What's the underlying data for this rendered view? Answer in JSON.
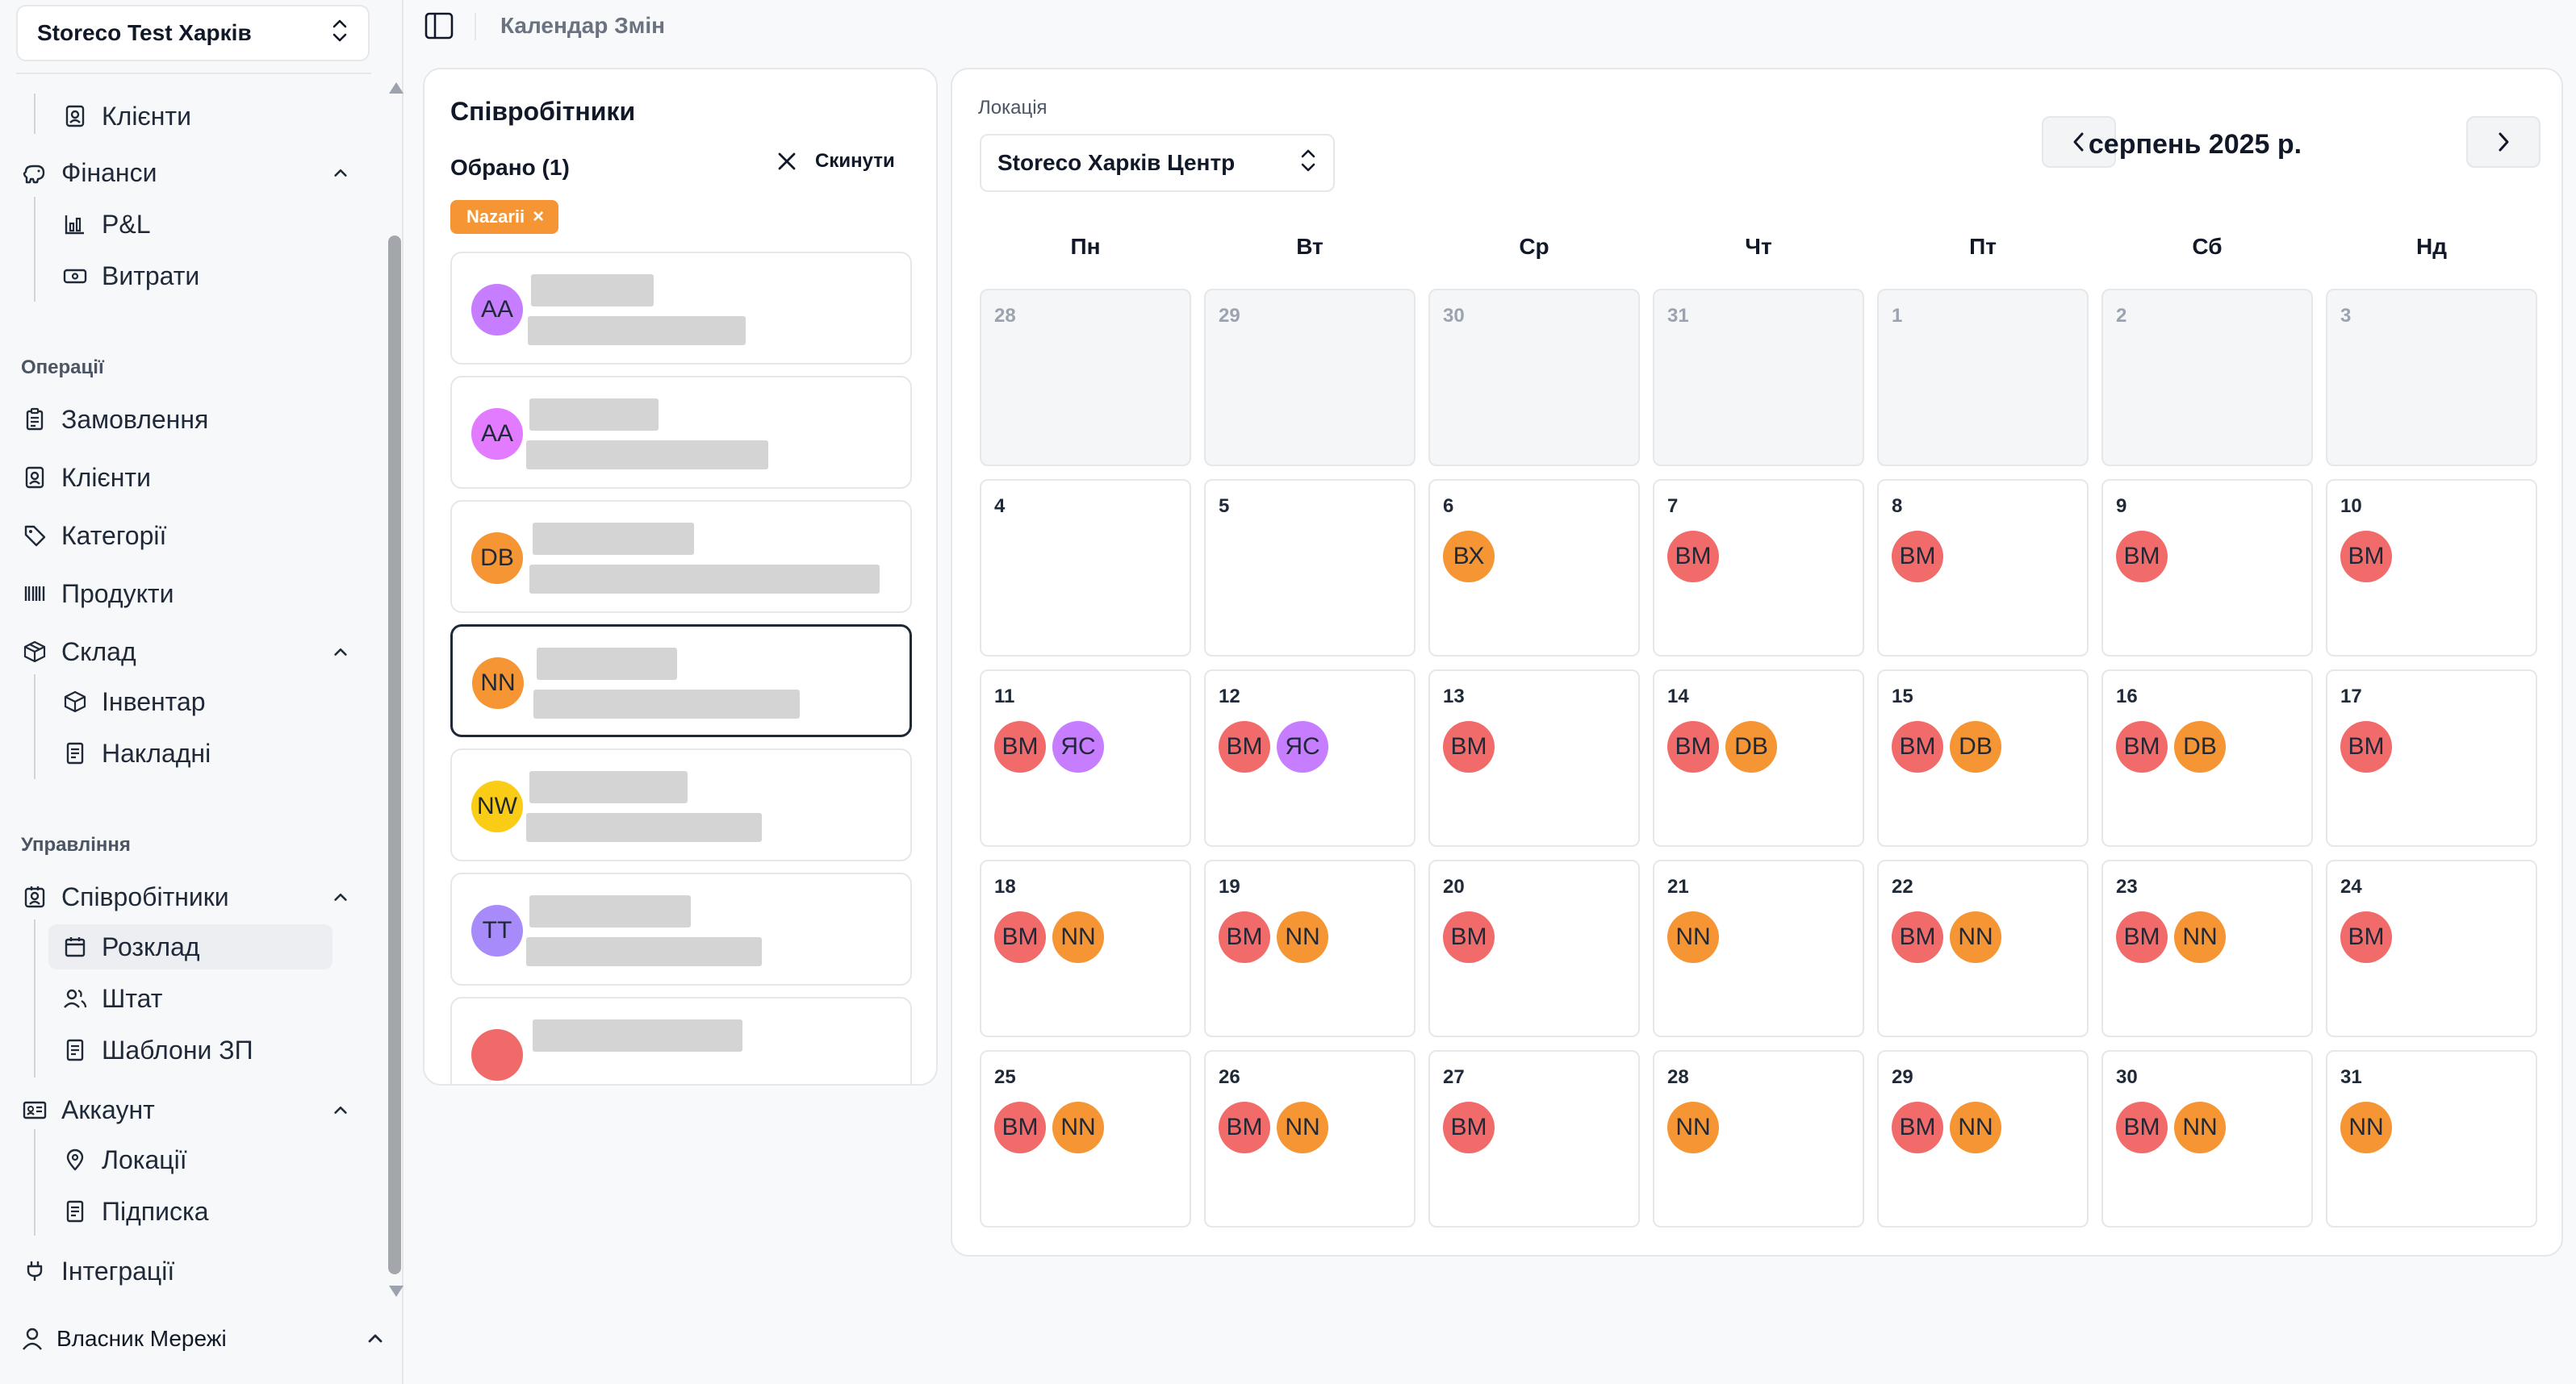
{
  "sidebar": {
    "store_name": "Storeco Test Харків",
    "items": {
      "clients_top": "Клієнти",
      "finance": "Фінанси",
      "pl": "P&L",
      "expenses": "Витрати",
      "section_operations": "Операції",
      "orders": "Замовлення",
      "clients": "Клієнти",
      "categories": "Категорії",
      "products": "Продукти",
      "warehouse": "Склад",
      "inventory": "Інвентар",
      "invoices": "Накладні",
      "section_management": "Управління",
      "employees": "Співробітники",
      "schedule": "Розклад",
      "staff": "Штат",
      "salary_templates": "Шаблони ЗП",
      "account": "Аккаунт",
      "locations": "Локації",
      "subscription": "Підписка",
      "integrations": "Інтеграції"
    },
    "owner": "Власник Мережі"
  },
  "header": {
    "title": "Календар Змін"
  },
  "employees_panel": {
    "title": "Співробітники",
    "chosen": "Обрано (1)",
    "reset": "Скинути",
    "tag": "Nazarii",
    "cards": [
      {
        "initials": "AA",
        "color": "#c77dff"
      },
      {
        "initials": "AA",
        "color": "#e27bff"
      },
      {
        "initials": "DB",
        "color": "#f59534"
      },
      {
        "initials": "NN",
        "color": "#f59534",
        "selected": true
      },
      {
        "initials": "NW",
        "color": "#facc15"
      },
      {
        "initials": "TT",
        "color": "#a78bfa"
      },
      {
        "initials": "",
        "color": "#f06a6a"
      }
    ]
  },
  "calendar": {
    "location_label": "Локація",
    "location_value": "Storeco Харків Центр",
    "month": "серпень 2025 р.",
    "weekdays": [
      "Пн",
      "Вт",
      "Ср",
      "Чт",
      "Пт",
      "Сб",
      "Нд"
    ],
    "colors": {
      "ВМ": "#f26b6b",
      "ЯС": "#c77dff",
      "ВХ": "#f59534",
      "DB": "#f59534",
      "NN": "#f59534"
    },
    "days": [
      {
        "d": "28",
        "other": true,
        "s": []
      },
      {
        "d": "29",
        "other": true,
        "s": []
      },
      {
        "d": "30",
        "other": true,
        "s": []
      },
      {
        "d": "31",
        "other": true,
        "s": []
      },
      {
        "d": "1",
        "other": true,
        "s": []
      },
      {
        "d": "2",
        "other": true,
        "s": []
      },
      {
        "d": "3",
        "other": true,
        "s": []
      },
      {
        "d": "4",
        "s": []
      },
      {
        "d": "5",
        "s": []
      },
      {
        "d": "6",
        "s": [
          "ВХ"
        ]
      },
      {
        "d": "7",
        "s": [
          "ВМ"
        ]
      },
      {
        "d": "8",
        "s": [
          "ВМ"
        ]
      },
      {
        "d": "9",
        "s": [
          "ВМ"
        ]
      },
      {
        "d": "10",
        "s": [
          "ВМ"
        ]
      },
      {
        "d": "11",
        "s": [
          "ВМ",
          "ЯС"
        ]
      },
      {
        "d": "12",
        "s": [
          "ВМ",
          "ЯС"
        ]
      },
      {
        "d": "13",
        "s": [
          "ВМ"
        ]
      },
      {
        "d": "14",
        "s": [
          "ВМ",
          "DB"
        ]
      },
      {
        "d": "15",
        "s": [
          "ВМ",
          "DB"
        ]
      },
      {
        "d": "16",
        "s": [
          "ВМ",
          "DB"
        ]
      },
      {
        "d": "17",
        "s": [
          "ВМ"
        ]
      },
      {
        "d": "18",
        "s": [
          "ВМ",
          "NN"
        ]
      },
      {
        "d": "19",
        "s": [
          "ВМ",
          "NN"
        ]
      },
      {
        "d": "20",
        "s": [
          "ВМ"
        ]
      },
      {
        "d": "21",
        "s": [
          "NN"
        ]
      },
      {
        "d": "22",
        "s": [
          "ВМ",
          "NN"
        ]
      },
      {
        "d": "23",
        "s": [
          "ВМ",
          "NN"
        ]
      },
      {
        "d": "24",
        "s": [
          "ВМ"
        ]
      },
      {
        "d": "25",
        "s": [
          "ВМ",
          "NN"
        ]
      },
      {
        "d": "26",
        "s": [
          "ВМ",
          "NN"
        ]
      },
      {
        "d": "27",
        "s": [
          "ВМ"
        ]
      },
      {
        "d": "28",
        "s": [
          "NN"
        ]
      },
      {
        "d": "29",
        "s": [
          "ВМ",
          "NN"
        ]
      },
      {
        "d": "30",
        "s": [
          "ВМ",
          "NN"
        ]
      },
      {
        "d": "31",
        "s": [
          "NN"
        ]
      }
    ]
  }
}
